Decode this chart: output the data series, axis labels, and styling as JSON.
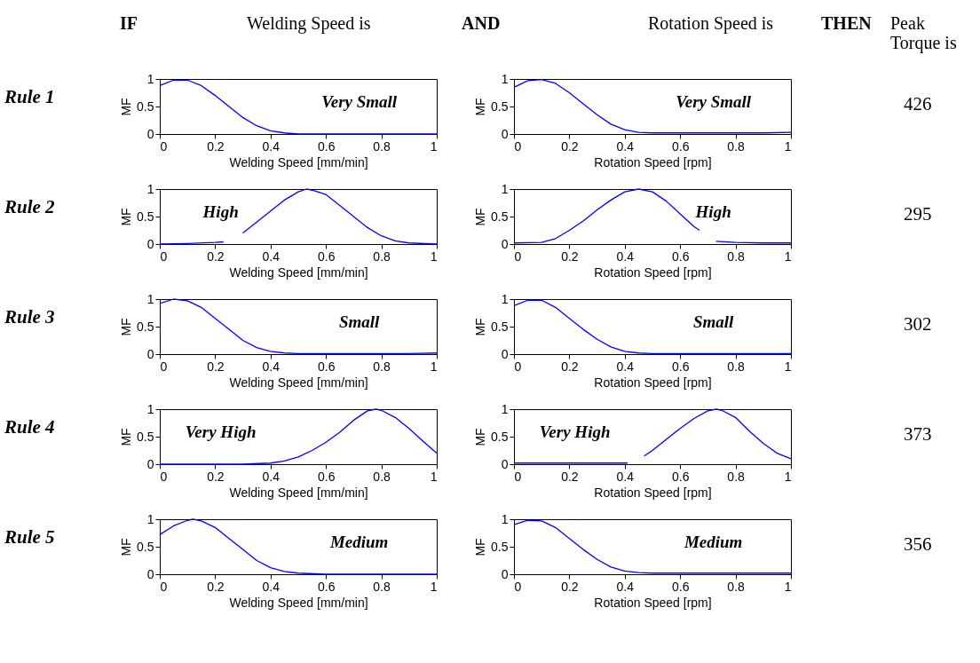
{
  "chart_data": [
    {
      "type": "other",
      "annotations": [
        "IF",
        "Welding Speed is",
        "AND",
        "Rotation Speed is",
        "THEN",
        "Peak\nTorque is"
      ]
    },
    {
      "type": "other",
      "annotations": [
        "Rule 1",
        "Rule 2",
        "Rule 3",
        "Rule 4",
        "Rule 5"
      ]
    },
    {
      "type": "line",
      "xlabel": "Welding Speed [mm/min]",
      "ylabel": "MF",
      "xlim": [
        0,
        1
      ],
      "ylim": [
        0,
        1
      ],
      "xticks": [
        0,
        0.2,
        0.4,
        0.6,
        0.8,
        1
      ],
      "yticks": [
        0,
        0.5,
        1
      ],
      "grid": false,
      "annotations": [
        "Very Small"
      ],
      "series": [
        {
          "color": "#0000ff",
          "x": [
            0,
            0.05,
            0.1,
            0.15,
            0.2,
            0.25,
            0.3,
            0.35,
            0.4,
            0.45,
            0.5,
            0.6,
            0.7,
            0.8,
            0.9,
            1
          ],
          "values": [
            0.88,
            0.98,
            0.98,
            0.88,
            0.7,
            0.5,
            0.3,
            0.15,
            0.06,
            0.02,
            0,
            0,
            0,
            0,
            0,
            0
          ]
        }
      ]
    },
    {
      "type": "line",
      "xlabel": "Rotation Speed [rpm]",
      "ylabel": "MF",
      "xlim": [
        0,
        1
      ],
      "ylim": [
        0,
        1
      ],
      "xticks": [
        0,
        0.2,
        0.4,
        0.6,
        0.8,
        1
      ],
      "yticks": [
        0,
        0.5,
        1
      ],
      "grid": false,
      "annotations": [
        "Very Small"
      ],
      "series": [
        {
          "color": "#0000ff",
          "x": [
            0,
            0.05,
            0.1,
            0.15,
            0.2,
            0.25,
            0.3,
            0.35,
            0.4,
            0.45,
            0.5,
            0.6,
            0.7,
            0.8,
            0.9,
            1
          ],
          "values": [
            0.85,
            0.97,
            0.99,
            0.92,
            0.75,
            0.55,
            0.35,
            0.18,
            0.08,
            0.03,
            0.02,
            0.02,
            0.02,
            0.02,
            0.02,
            0.03
          ]
        }
      ]
    },
    {
      "type": "line",
      "xlabel": "Welding Speed [mm/min]",
      "ylabel": "MF",
      "xlim": [
        0,
        1
      ],
      "ylim": [
        0,
        1
      ],
      "xticks": [
        0,
        0.2,
        0.4,
        0.6,
        0.8,
        1
      ],
      "yticks": [
        0,
        0.5,
        1
      ],
      "grid": false,
      "annotations": [
        "High"
      ],
      "series": [
        {
          "color": "#0000ff",
          "x": [
            0,
            0.1,
            0.2,
            0.23,
            0.27,
            0.3,
            0.35,
            0.4,
            0.45,
            0.5,
            0.53,
            0.55,
            0.6,
            0.65,
            0.7,
            0.75,
            0.8,
            0.85,
            0.9,
            1
          ],
          "values": [
            0,
            0.01,
            0.03,
            0.04,
            null,
            0.2,
            0.4,
            0.6,
            0.8,
            0.95,
            1,
            0.98,
            0.9,
            0.7,
            0.5,
            0.3,
            0.15,
            0.06,
            0.02,
            0
          ]
        }
      ]
    },
    {
      "type": "line",
      "xlabel": "Rotation Speed [rpm]",
      "ylabel": "MF",
      "xlim": [
        0,
        1
      ],
      "ylim": [
        0,
        1
      ],
      "xticks": [
        0,
        0.2,
        0.4,
        0.6,
        0.8,
        1
      ],
      "yticks": [
        0,
        0.5,
        1
      ],
      "grid": false,
      "annotations": [
        "High"
      ],
      "series": [
        {
          "color": "#0000ff",
          "x": [
            0,
            0.1,
            0.15,
            0.2,
            0.25,
            0.3,
            0.35,
            0.4,
            0.45,
            0.5,
            0.55,
            0.6,
            0.65,
            0.67,
            0.7,
            0.73,
            0.8,
            0.9,
            1
          ],
          "values": [
            0.02,
            0.03,
            0.1,
            0.25,
            0.42,
            0.62,
            0.8,
            0.95,
            1,
            0.95,
            0.78,
            0.55,
            0.32,
            0.25,
            null,
            0.05,
            0.03,
            0.02,
            0.02
          ]
        }
      ]
    },
    {
      "type": "line",
      "xlabel": "Welding Speed [mm/min]",
      "ylabel": "MF",
      "xlim": [
        0,
        1
      ],
      "ylim": [
        0,
        1
      ],
      "xticks": [
        0,
        0.2,
        0.4,
        0.6,
        0.8,
        1
      ],
      "yticks": [
        0,
        0.5,
        1
      ],
      "grid": false,
      "annotations": [
        "Small"
      ],
      "series": [
        {
          "color": "#0000ff",
          "x": [
            0,
            0.05,
            0.1,
            0.15,
            0.2,
            0.25,
            0.3,
            0.35,
            0.4,
            0.45,
            0.5,
            0.6,
            0.7,
            0.8,
            0.9,
            1
          ],
          "values": [
            0.92,
            1,
            0.97,
            0.85,
            0.65,
            0.45,
            0.25,
            0.12,
            0.05,
            0.02,
            0.01,
            0.01,
            0.01,
            0.01,
            0.01,
            0.02
          ]
        }
      ]
    },
    {
      "type": "line",
      "xlabel": "Rotation Speed [rpm]",
      "ylabel": "MF",
      "xlim": [
        0,
        1
      ],
      "ylim": [
        0,
        1
      ],
      "xticks": [
        0,
        0.2,
        0.4,
        0.6,
        0.8,
        1
      ],
      "yticks": [
        0,
        0.5,
        1
      ],
      "grid": false,
      "annotations": [
        "Small"
      ],
      "series": [
        {
          "color": "#0000ff",
          "x": [
            0,
            0.05,
            0.1,
            0.15,
            0.2,
            0.25,
            0.3,
            0.35,
            0.4,
            0.45,
            0.5,
            0.6,
            0.7,
            0.8,
            0.9,
            1
          ],
          "values": [
            0.88,
            0.98,
            0.98,
            0.85,
            0.65,
            0.45,
            0.27,
            0.13,
            0.05,
            0.02,
            0.01,
            0.01,
            0.01,
            0.01,
            0.01,
            0.01
          ]
        }
      ]
    },
    {
      "type": "line",
      "xlabel": "Welding Speed [mm/min]",
      "ylabel": "MF",
      "xlim": [
        0,
        1
      ],
      "ylim": [
        0,
        1
      ],
      "xticks": [
        0,
        0.2,
        0.4,
        0.6,
        0.8,
        1
      ],
      "yticks": [
        0,
        0.5,
        1
      ],
      "grid": false,
      "annotations": [
        "Very High"
      ],
      "series": [
        {
          "color": "#0000ff",
          "x": [
            0,
            0.1,
            0.2,
            0.3,
            0.4,
            0.45,
            0.5,
            0.55,
            0.6,
            0.65,
            0.7,
            0.75,
            0.78,
            0.8,
            0.85,
            0.9,
            0.95,
            1
          ],
          "values": [
            0,
            0,
            0,
            0,
            0.02,
            0.06,
            0.13,
            0.25,
            0.4,
            0.58,
            0.8,
            0.97,
            1,
            0.98,
            0.85,
            0.65,
            0.42,
            0.2
          ]
        }
      ]
    },
    {
      "type": "line",
      "xlabel": "Rotation Speed [rpm]",
      "ylabel": "MF",
      "xlim": [
        0,
        1
      ],
      "ylim": [
        0,
        1
      ],
      "xticks": [
        0,
        0.2,
        0.4,
        0.6,
        0.8,
        1
      ],
      "yticks": [
        0,
        0.5,
        1
      ],
      "grid": false,
      "annotations": [
        "Very High"
      ],
      "series": [
        {
          "color": "#0000ff",
          "x": [
            0,
            0.1,
            0.2,
            0.3,
            0.41,
            0.44,
            0.47,
            0.5,
            0.55,
            0.6,
            0.65,
            0.7,
            0.73,
            0.75,
            0.8,
            0.85,
            0.9,
            0.95,
            1
          ],
          "values": [
            0.02,
            0.02,
            0.02,
            0.02,
            0.02,
            null,
            0.15,
            0.25,
            0.45,
            0.65,
            0.83,
            0.97,
            1,
            0.98,
            0.85,
            0.6,
            0.38,
            0.2,
            0.1
          ]
        }
      ]
    },
    {
      "type": "line",
      "xlabel": "Welding Speed [mm/min]",
      "ylabel": "MF",
      "xlim": [
        0,
        1
      ],
      "ylim": [
        0,
        1
      ],
      "xticks": [
        0,
        0.2,
        0.4,
        0.6,
        0.8,
        1
      ],
      "yticks": [
        0,
        0.5,
        1
      ],
      "grid": false,
      "annotations": [
        "Medium"
      ],
      "series": [
        {
          "color": "#0000ff",
          "x": [
            0,
            0.05,
            0.1,
            0.12,
            0.15,
            0.2,
            0.25,
            0.3,
            0.35,
            0.4,
            0.45,
            0.5,
            0.6,
            0.7,
            0.8,
            0.9,
            1
          ],
          "values": [
            0.72,
            0.88,
            0.98,
            1,
            0.97,
            0.85,
            0.65,
            0.45,
            0.25,
            0.12,
            0.05,
            0.02,
            0,
            0,
            0,
            0,
            0
          ]
        }
      ]
    },
    {
      "type": "line",
      "xlabel": "Rotation Speed [rpm]",
      "ylabel": "MF",
      "xlim": [
        0,
        1
      ],
      "ylim": [
        0,
        1
      ],
      "xticks": [
        0,
        0.2,
        0.4,
        0.6,
        0.8,
        1
      ],
      "yticks": [
        0,
        0.5,
        1
      ],
      "grid": false,
      "annotations": [
        "Medium"
      ],
      "series": [
        {
          "color": "#0000ff",
          "x": [
            0,
            0.05,
            0.1,
            0.15,
            0.2,
            0.25,
            0.3,
            0.35,
            0.4,
            0.45,
            0.5,
            0.6,
            0.7,
            0.8,
            0.9,
            1
          ],
          "values": [
            0.9,
            0.98,
            0.97,
            0.85,
            0.65,
            0.45,
            0.27,
            0.13,
            0.06,
            0.03,
            0.02,
            0.02,
            0.02,
            0.02,
            0.02,
            0.02
          ]
        }
      ]
    },
    {
      "type": "other",
      "annotations": [
        "426",
        "295",
        "302",
        "373",
        "356"
      ]
    }
  ]
}
